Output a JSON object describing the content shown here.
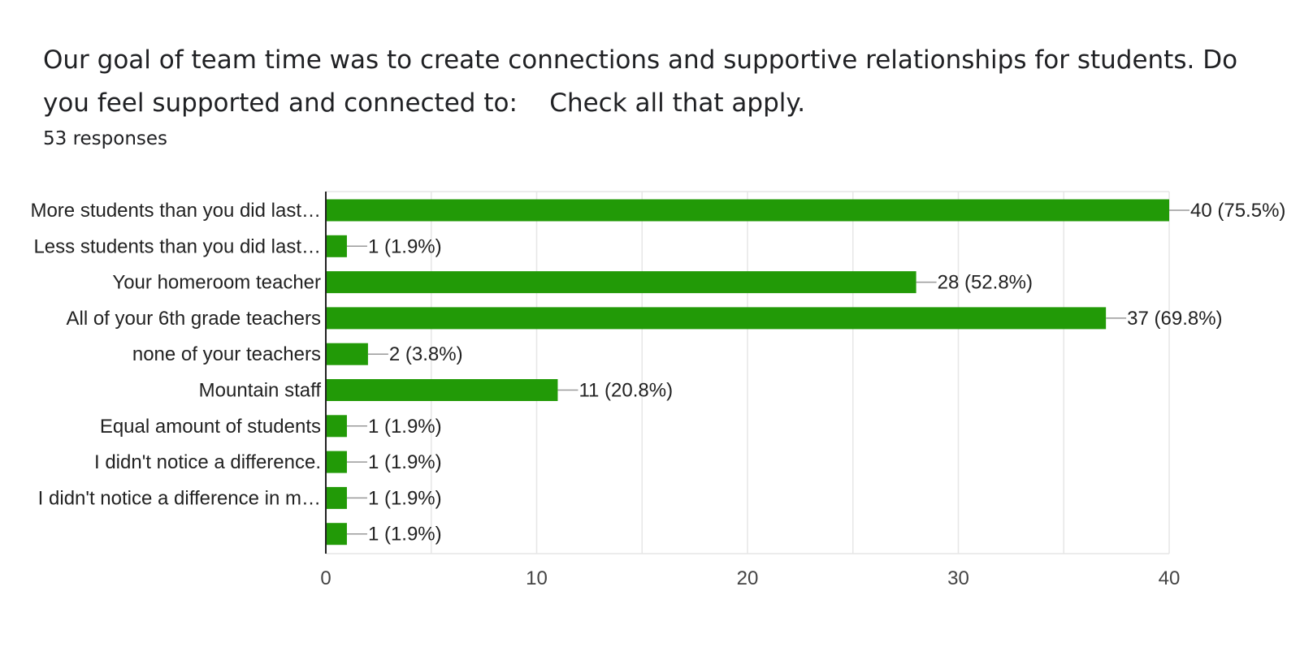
{
  "question": {
    "title": "Our goal of team time was to create connections and supportive relationships for students. Do you feel supported and connected to:    Check all that apply.",
    "response_count": "53 responses"
  },
  "colors": {
    "bar": "#229a07",
    "grid": "#e6e6e6",
    "axis": "#222222",
    "leader": "#999999"
  },
  "chart_data": {
    "type": "bar",
    "orientation": "horizontal",
    "categories": [
      "More students than you did last…",
      "Less students than you did last…",
      "Your homeroom teacher",
      "All of your 6th grade teachers",
      "none of your teachers",
      "Mountain staff",
      "Equal amount of students",
      "I didn't notice a difference.",
      "I didn't notice a difference in m…",
      ""
    ],
    "values": [
      40,
      1,
      28,
      37,
      2,
      11,
      1,
      1,
      1,
      1
    ],
    "data_labels": [
      "40 (75.5%)",
      "1 (1.9%)",
      "28 (52.8%)",
      "37 (69.8%)",
      "2 (3.8%)",
      "11 (20.8%)",
      "1 (1.9%)",
      "1 (1.9%)",
      "1 (1.9%)",
      "1 (1.9%)"
    ],
    "xlim": [
      0,
      40
    ],
    "xticks": [
      0,
      10,
      20,
      30,
      40
    ],
    "xtick_labels": [
      "0",
      "10",
      "20",
      "30",
      "40"
    ],
    "gridlines_every": 5,
    "grid": true,
    "legend": "none"
  }
}
